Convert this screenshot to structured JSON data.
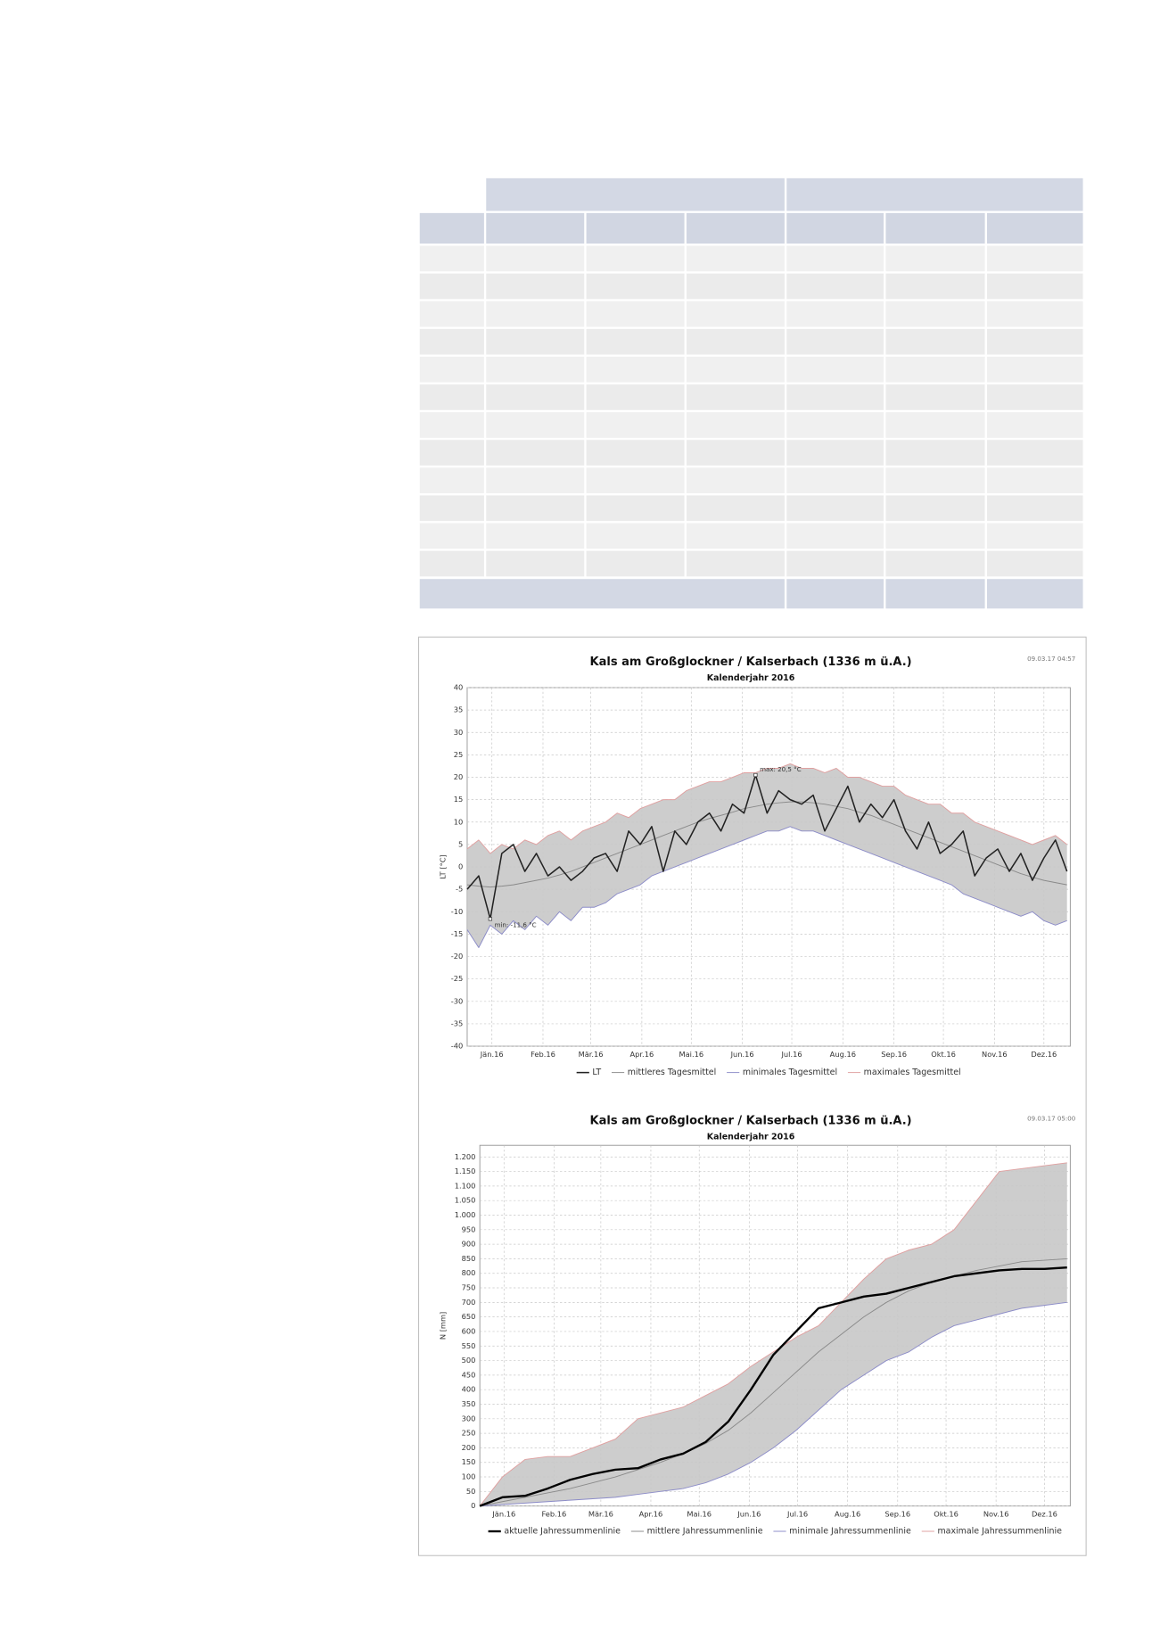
{
  "chart_data": [
    {
      "type": "line",
      "title": "Kals am Großglockner / Kalserbach (1336 m ü.A.)",
      "subtitle": "Kalenderjahr 2016",
      "timestamp": "09.03.17 04:57",
      "y_label": "LT [°C]",
      "xlim": [
        0,
        366
      ],
      "xticks": [
        {
          "value": 15,
          "label": "Jän.16"
        },
        {
          "value": 46,
          "label": "Feb.16"
        },
        {
          "value": 75,
          "label": "Mär.16"
        },
        {
          "value": 106,
          "label": "Apr.16"
        },
        {
          "value": 136,
          "label": "Mai.16"
        },
        {
          "value": 167,
          "label": "Jun.16"
        },
        {
          "value": 197,
          "label": "Jul.16"
        },
        {
          "value": 228,
          "label": "Aug.16"
        },
        {
          "value": 259,
          "label": "Sep.16"
        },
        {
          "value": 289,
          "label": "Okt.16"
        },
        {
          "value": 320,
          "label": "Nov.16"
        },
        {
          "value": 350,
          "label": "Dez.16"
        }
      ],
      "ylim": [
        -40,
        40
      ],
      "yticks": [
        -40,
        -35,
        -30,
        -25,
        -20,
        -15,
        -10,
        -5,
        0,
        5,
        10,
        15,
        20,
        25,
        30,
        35,
        40
      ],
      "grid": true,
      "legend": "bottom",
      "band_color": "#c4c4c4",
      "x": [
        0,
        7,
        14,
        21,
        28,
        35,
        42,
        49,
        56,
        63,
        70,
        77,
        84,
        91,
        98,
        105,
        112,
        119,
        126,
        133,
        140,
        147,
        154,
        161,
        168,
        175,
        182,
        189,
        196,
        203,
        210,
        217,
        224,
        231,
        238,
        245,
        252,
        259,
        266,
        273,
        280,
        287,
        294,
        301,
        308,
        315,
        322,
        329,
        336,
        343,
        350,
        357,
        364
      ],
      "series": [
        {
          "name": "LT",
          "color": "#222222",
          "line_width": 1.3,
          "values": [
            -5,
            -2,
            -11.6,
            3,
            5,
            -1,
            3,
            -2,
            0,
            -3,
            -1,
            2,
            3,
            -1,
            8,
            5,
            9,
            -1,
            8,
            5,
            10,
            12,
            8,
            14,
            12,
            20.5,
            12,
            17,
            15,
            14,
            16,
            8,
            13,
            18,
            10,
            14,
            11,
            15,
            8,
            4,
            10,
            3,
            5,
            8,
            -2,
            2,
            4,
            -1,
            3,
            -3,
            2,
            6,
            -1
          ]
        },
        {
          "name": "mittleres Tagesmittel",
          "color": "#8a8a8a",
          "line_width": 0.8,
          "values": [
            -4,
            -4.3,
            -4.5,
            -4.3,
            -4,
            -3.5,
            -3,
            -2.5,
            -1.8,
            -1,
            0,
            1,
            2,
            3,
            4,
            5,
            6,
            7,
            8,
            9,
            10,
            10.8,
            11.5,
            12.2,
            13,
            13.5,
            14,
            14.3,
            14.5,
            14.5,
            14.3,
            14,
            13.5,
            13,
            12.2,
            11.5,
            10.5,
            9.5,
            8.5,
            7.5,
            6.5,
            5.5,
            4.5,
            3.5,
            2.5,
            1.5,
            0.5,
            -0.5,
            -1.5,
            -2.3,
            -3,
            -3.5,
            -4
          ]
        },
        {
          "name": "minimales Tagesmittel",
          "color": "#8c8cc8",
          "line_width": 0.8,
          "values": [
            -14,
            -18,
            -13,
            -15,
            -12,
            -14,
            -11,
            -13,
            -10,
            -12,
            -9,
            -9,
            -8,
            -6,
            -5,
            -4,
            -2,
            -1,
            0,
            1,
            2,
            3,
            4,
            5,
            6,
            7,
            8,
            8,
            9,
            8,
            8,
            7,
            6,
            5,
            4,
            3,
            2,
            1,
            0,
            -1,
            -2,
            -3,
            -4,
            -6,
            -7,
            -8,
            -9,
            -10,
            -11,
            -10,
            -12,
            -13,
            -12
          ]
        },
        {
          "name": "maximales Tagesmittel",
          "color": "#e0a0a0",
          "line_width": 0.8,
          "values": [
            4,
            6,
            3,
            5,
            4,
            6,
            5,
            7,
            8,
            6,
            8,
            9,
            10,
            12,
            11,
            13,
            14,
            15,
            15,
            17,
            18,
            19,
            19,
            20,
            21,
            21,
            22,
            22,
            23,
            22,
            22,
            21,
            22,
            20,
            20,
            19,
            18,
            18,
            16,
            15,
            14,
            14,
            12,
            12,
            10,
            9,
            8,
            7,
            6,
            5,
            6,
            7,
            5
          ]
        }
      ],
      "annotations": [
        {
          "text": "max: 20,5 °C",
          "x": 175,
          "y": 20.5
        },
        {
          "text": "min: -11,6 °C",
          "x": 14,
          "y": -11.6
        }
      ]
    },
    {
      "type": "line",
      "title": "Kals am Großglockner / Kalserbach (1336 m ü.A.)",
      "subtitle": "Kalenderjahr 2016",
      "timestamp": "09.03.17 05:00",
      "y_label": "N [mm]",
      "xlim": [
        0,
        366
      ],
      "xticks": [
        {
          "value": 15,
          "label": "Jän.16"
        },
        {
          "value": 46,
          "label": "Feb.16"
        },
        {
          "value": 75,
          "label": "Mär.16"
        },
        {
          "value": 106,
          "label": "Apr.16"
        },
        {
          "value": 136,
          "label": "Mai.16"
        },
        {
          "value": 167,
          "label": "Jun.16"
        },
        {
          "value": 197,
          "label": "Jul.16"
        },
        {
          "value": 228,
          "label": "Aug.16"
        },
        {
          "value": 259,
          "label": "Sep.16"
        },
        {
          "value": 289,
          "label": "Okt.16"
        },
        {
          "value": 320,
          "label": "Nov.16"
        },
        {
          "value": 350,
          "label": "Dez.16"
        }
      ],
      "ylim": [
        0,
        1240
      ],
      "yticks": [
        0,
        50,
        100,
        150,
        200,
        250,
        300,
        350,
        400,
        450,
        500,
        550,
        600,
        650,
        700,
        750,
        800,
        850,
        900,
        950,
        {
          "value": 1000,
          "label": "1.000"
        },
        {
          "value": 1050,
          "label": "1.050"
        },
        {
          "value": 1100,
          "label": "1.100"
        },
        {
          "value": 1150,
          "label": "1.150"
        },
        {
          "value": 1200,
          "label": "1.200"
        }
      ],
      "grid": true,
      "legend": "bottom",
      "band_color": "#c4c4c4",
      "x": [
        0,
        14,
        28,
        42,
        56,
        70,
        84,
        98,
        112,
        126,
        140,
        154,
        168,
        182,
        196,
        210,
        224,
        238,
        252,
        266,
        280,
        294,
        308,
        322,
        336,
        350,
        364
      ],
      "series": [
        {
          "name": "aktuelle Jahressummenlinie",
          "color": "#000000",
          "line_width": 2,
          "values": [
            0,
            30,
            35,
            60,
            90,
            110,
            125,
            130,
            160,
            180,
            220,
            290,
            400,
            520,
            600,
            680,
            700,
            720,
            730,
            750,
            770,
            790,
            800,
            810,
            815,
            815,
            820
          ]
        },
        {
          "name": "mittlere Jahressummenlinie",
          "color": "#8a8a8a",
          "line_width": 0.8,
          "values": [
            0,
            15,
            30,
            45,
            60,
            80,
            100,
            125,
            150,
            180,
            215,
            260,
            320,
            390,
            460,
            530,
            590,
            650,
            700,
            740,
            770,
            790,
            810,
            825,
            840,
            845,
            850
          ]
        },
        {
          "name": "minimale Jahressummenlinie",
          "color": "#8c8cc8",
          "line_width": 0.8,
          "values": [
            0,
            5,
            10,
            15,
            20,
            25,
            30,
            40,
            50,
            60,
            80,
            110,
            150,
            200,
            260,
            330,
            400,
            450,
            500,
            530,
            580,
            620,
            640,
            660,
            680,
            690,
            700
          ]
        },
        {
          "name": "maximale Jahressummenlinie",
          "color": "#e0a0a0",
          "line_width": 0.8,
          "values": [
            0,
            100,
            160,
            170,
            170,
            200,
            230,
            300,
            320,
            340,
            380,
            420,
            480,
            530,
            580,
            620,
            700,
            780,
            850,
            880,
            900,
            950,
            1050,
            1150,
            1160,
            1170,
            1180
          ]
        }
      ]
    }
  ]
}
